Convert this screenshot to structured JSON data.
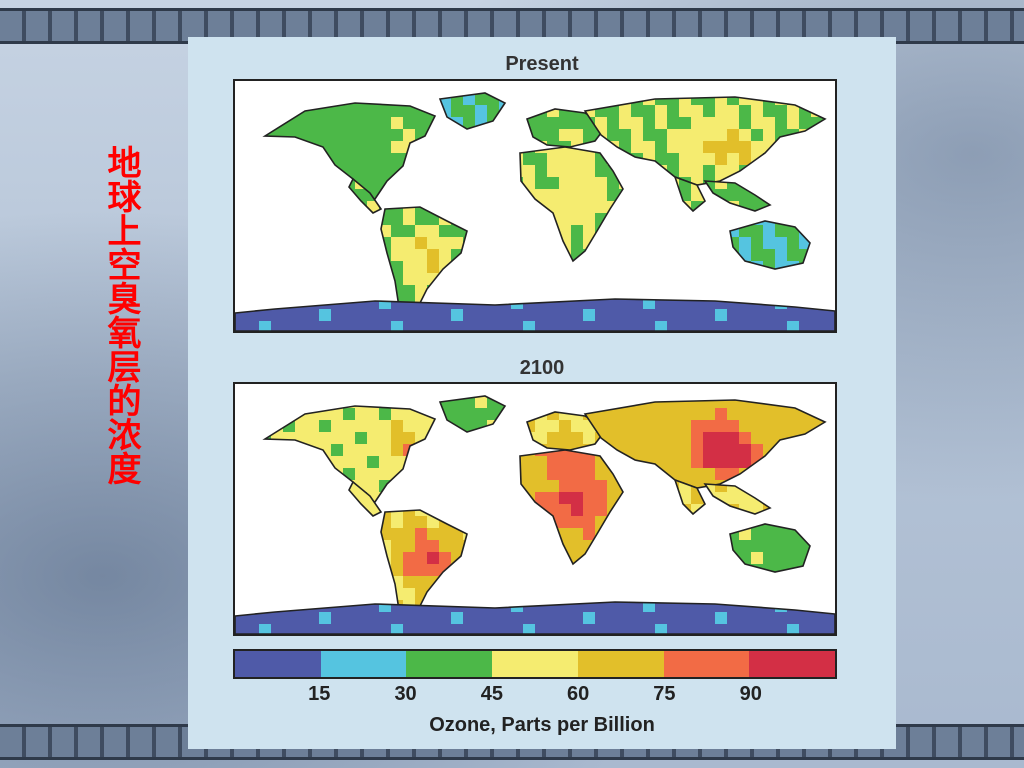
{
  "slide": {
    "vertical_title": "地球上空臭氧层的浓度"
  },
  "maps": [
    {
      "title": "Present",
      "scenario": "present"
    },
    {
      "title": "2100",
      "scenario": "2100"
    }
  ],
  "legend": {
    "label": "Ozone, Parts per Billion",
    "tick_labels": [
      "15",
      "30",
      "45",
      "60",
      "75",
      "90"
    ],
    "bins": [
      {
        "min": 0,
        "max": 15,
        "color": "#4f5aa8"
      },
      {
        "min": 15,
        "max": 30,
        "color": "#55c4e0"
      },
      {
        "min": 30,
        "max": 45,
        "color": "#4cb848"
      },
      {
        "min": 45,
        "max": 60,
        "color": "#f5ec70"
      },
      {
        "min": 60,
        "max": 75,
        "color": "#e2bf2a"
      },
      {
        "min": 75,
        "max": 90,
        "color": "#f26b45"
      },
      {
        "min": 90,
        "max": 105,
        "color": "#d32f45"
      }
    ]
  },
  "colors": {
    "ocean": "#ffffff",
    "coastline": "#222222",
    "panel": "#cfe3ef",
    "title_text": "#ff0000"
  }
}
